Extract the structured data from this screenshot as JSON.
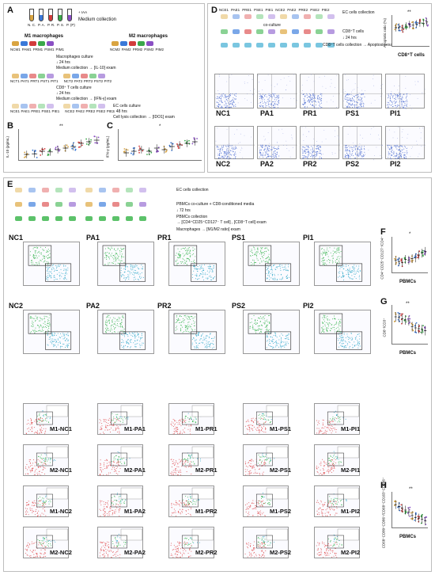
{
  "panelA": {
    "label": "A",
    "tubes": [
      "N. C.",
      "P. A.",
      "P. R.",
      "P. S.",
      "P. (P)"
    ],
    "tube_note": "+ IAA",
    "medium_collection": "Medium collection",
    "m1_label": "M1 macrophages",
    "m2_label": "M2 macrophages",
    "m1_wells": [
      "NCM1",
      "PAM1",
      "PRM1",
      "PSM1",
      "PIM1"
    ],
    "m2_wells": [
      "NCM2",
      "PAM2",
      "PRM2",
      "PSM2",
      "PIM2"
    ],
    "step1": "Macrophages culture",
    "step1_time": "24 hrs",
    "step1_exam": "Medium collection → [IL-10] exam",
    "t_wells": [
      "NCT1",
      "PAT1",
      "PRT1",
      "PST1",
      "PIT1",
      "NCT2",
      "PAT2",
      "PRT2",
      "PST2",
      "PIT2"
    ],
    "step2": "CD8⁺ T cells culture",
    "step2_time": "24 hrs",
    "step2_exam": "Medium collection → [IFN-γ] exam",
    "e_wells": [
      "NCE1",
      "PAE1",
      "PRE1",
      "PSE1",
      "PIE1",
      "NCE2",
      "PAE2",
      "PRE2",
      "PSE2",
      "PIE2"
    ],
    "step3": "EC cells culture",
    "step3_time": "48 hrs",
    "step3_exam": "Cell lysis collection → [IDO1] exam"
  },
  "panelB": {
    "label": "B",
    "ylabel": "IL-10 (pg/mL)",
    "sig": "**"
  },
  "panelC": {
    "label": "C",
    "ylabel": "IFN-γ (pg/mL)",
    "sig": "*"
  },
  "panelD": {
    "label": "D",
    "wells": [
      "NCE1",
      "PAE1",
      "PRE1",
      "PSE1",
      "PIE1",
      "NCE2",
      "PAE2",
      "PRE2",
      "PSE2",
      "PIE2"
    ],
    "ec_collection": "EC cells collection",
    "coculture": "co-culture",
    "cd8_cells": "CD8⁺T cells",
    "time": "24 hrs",
    "exam": "CD8⁺T cells collection → Apoptosis exam",
    "chart_ylabel": "Apoptotic ratio (%)",
    "chart_xlabel": "CD8⁺T cells",
    "sig": "**",
    "row1": [
      "NC1",
      "PA1",
      "PR1",
      "PS1",
      "PI1"
    ],
    "row2": [
      "NC2",
      "PA2",
      "PR2",
      "PS2",
      "PI2"
    ]
  },
  "panelE": {
    "label": "E",
    "ec_collection": "EC cells collection",
    "pbmc_coculture": "PBMCs co-culture + CD8-conditioned media",
    "time": "72 hrs",
    "pbmc_collection": "PBMCs collection",
    "treg_exam": "→ [CD4⁺CD25⁺CD127⁻ T cell] , [CD8⁺T cell] exam",
    "macro_exam": "Macrophages → [M1/M2 ratio] exam",
    "row1": [
      "NC1",
      "PA1",
      "PR1",
      "PS1",
      "PI1"
    ],
    "row2": [
      "NC2",
      "PA2",
      "PR2",
      "PS2",
      "PI2"
    ],
    "m_rows": [
      [
        "M1-NC1",
        "M1-PA1",
        "M1-PR1",
        "M1-PS1",
        "M1-PI1"
      ],
      [
        "M2-NC1",
        "M2-PA1",
        "M2-PR1",
        "M2-PS1",
        "M2-PI1"
      ],
      [
        "M1-NC2",
        "M1-PA2",
        "M1-PR2",
        "M1-PS2",
        "M1-PI2"
      ],
      [
        "M2-NC2",
        "M2-PA2",
        "M2-PR2",
        "M2-PS2",
        "M2-PI2"
      ]
    ]
  },
  "panelF": {
    "label": "F",
    "ylabel": "CD4⁺CD25⁺CD127⁻/CD4⁺",
    "xlabel": "PBMCs",
    "sig": "*"
  },
  "panelG": {
    "label": "G",
    "ylabel": "CD8⁺/CD3⁺",
    "xlabel": "PBMCs",
    "sig": "**"
  },
  "panelH": {
    "label": "H",
    "ylabel": "CD68⁺CD80⁺CD86⁺/CD68⁺CD163⁺CD206⁺",
    "xlabel": "PBMCs",
    "sig": "**"
  },
  "colors": {
    "nc": "#d9a441",
    "pa": "#3a78d8",
    "pr": "#d23c3c",
    "ps": "#3aa84a",
    "pi": "#8a4fc4",
    "facs_blue": "#4f6fd0",
    "facs_green": "#34b34a",
    "facs_red": "#e04848",
    "facs_cyan": "#2fa8c8"
  }
}
